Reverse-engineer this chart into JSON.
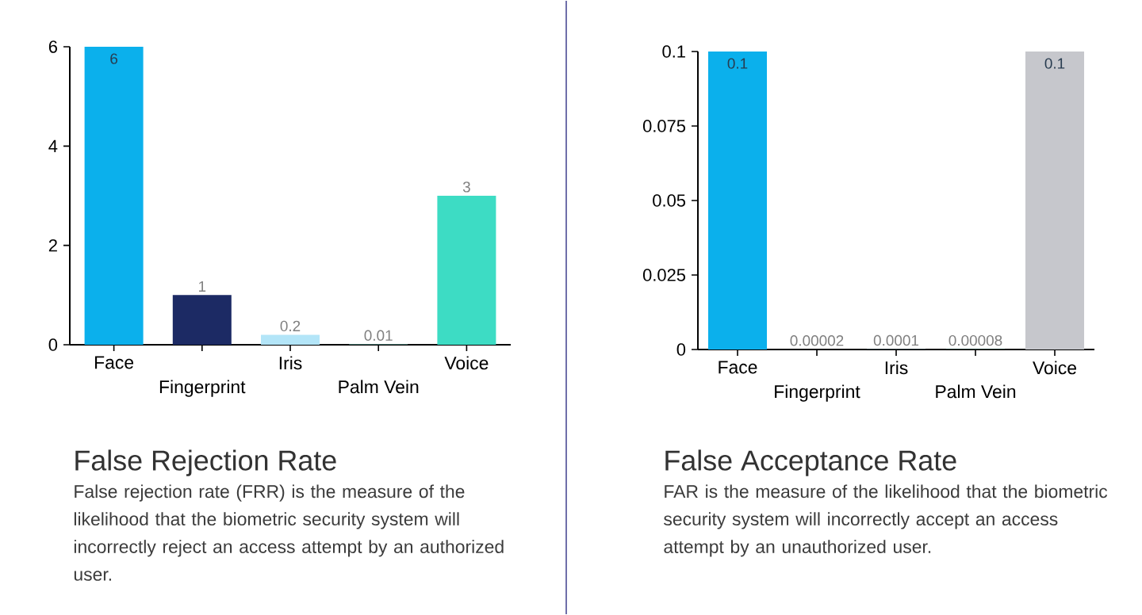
{
  "chart_data": [
    {
      "type": "bar",
      "title": "False Rejection Rate",
      "annotations": [
        "False rejection rate (FRR) is the measure of the likelihood that the biometric security system will incorrectly reject an access attempt by an authorized user."
      ],
      "categories": [
        "Face",
        "Fingerprint",
        "Iris",
        "Palm Vein",
        "Voice"
      ],
      "values": [
        6,
        1,
        0.2,
        0.01,
        3
      ],
      "colors": [
        "#0bb0ec",
        "#1c2a64",
        "#b3e5f8",
        "#7fd6c8",
        "#3ddcc4"
      ],
      "ylim": [
        0,
        6
      ],
      "yticks": [
        0,
        2,
        4,
        6
      ],
      "value_labels": [
        "6",
        "1",
        "0.2",
        "0.01",
        "3"
      ]
    },
    {
      "type": "bar",
      "title": "False Acceptance Rate",
      "annotations": [
        "FAR is the measure of the likelihood that the biometric security system will incorrectly accept an access attempt by an unauthorized user."
      ],
      "categories": [
        "Face",
        "Fingerprint",
        "Iris",
        "Palm Vein",
        "Voice"
      ],
      "values": [
        0.1,
        2e-05,
        0.0001,
        8e-05,
        0.1
      ],
      "colors": [
        "#0bb0ec",
        "#1c2a64",
        "#b3e5f8",
        "#3ddcc4",
        "#c6c7cc"
      ],
      "ylim": [
        0,
        0.1
      ],
      "yticks": [
        0,
        0.025,
        0.05,
        0.075,
        0.1
      ],
      "value_labels": [
        "0.1",
        "0.00002",
        "0.0001",
        "0.00008",
        "0.1"
      ]
    }
  ]
}
